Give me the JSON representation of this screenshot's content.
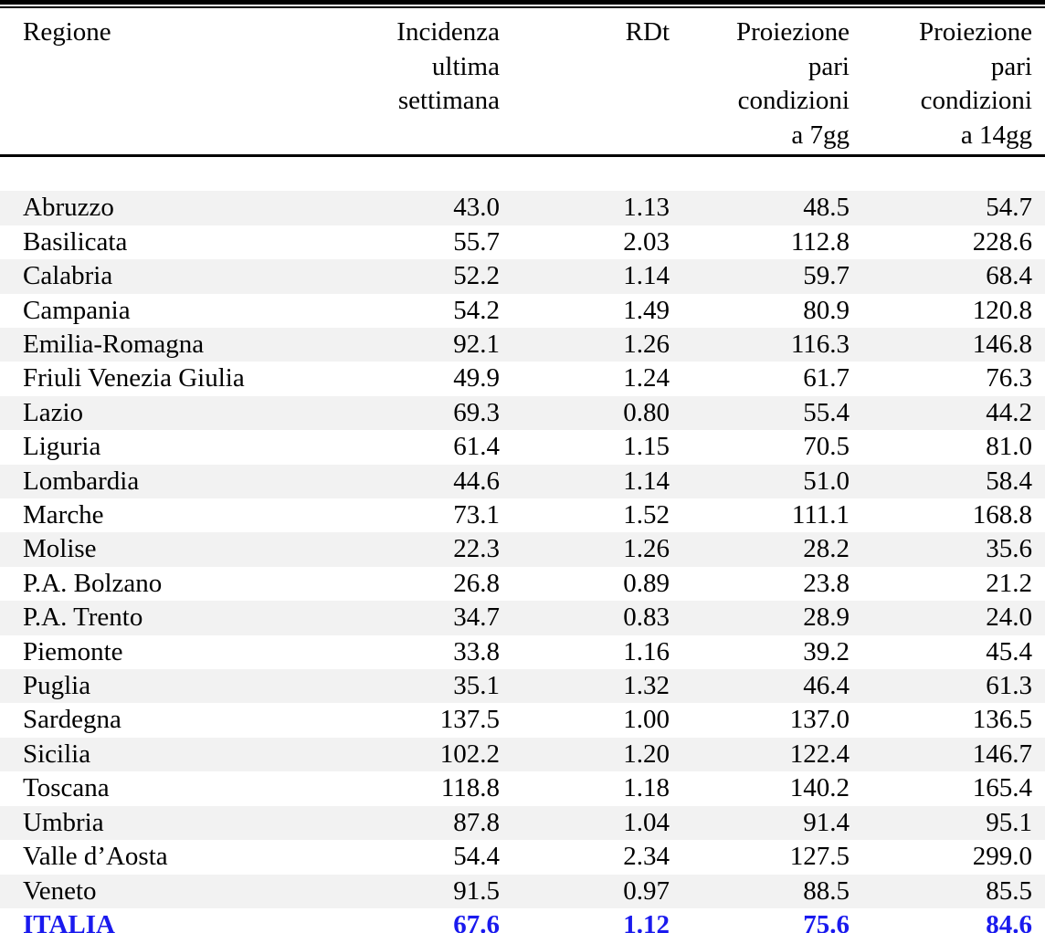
{
  "colors": {
    "stripe": "#f2f2f2",
    "total_accent": "#1a1aee",
    "rule": "#000000",
    "text": "#000000"
  },
  "table": {
    "headers": [
      "Regione",
      "Incidenza\nultima\nsettimana",
      "RDt",
      "Proiezione\npari\ncondizioni\na 7gg",
      "Proiezione\npari\ncondizioni\na 14gg"
    ],
    "rows": [
      {
        "region": "Abruzzo",
        "incidenza": "43.0",
        "rdt": "1.13",
        "p7": "48.5",
        "p14": "54.7"
      },
      {
        "region": "Basilicata",
        "incidenza": "55.7",
        "rdt": "2.03",
        "p7": "112.8",
        "p14": "228.6"
      },
      {
        "region": "Calabria",
        "incidenza": "52.2",
        "rdt": "1.14",
        "p7": "59.7",
        "p14": "68.4"
      },
      {
        "region": "Campania",
        "incidenza": "54.2",
        "rdt": "1.49",
        "p7": "80.9",
        "p14": "120.8"
      },
      {
        "region": "Emilia-Romagna",
        "incidenza": "92.1",
        "rdt": "1.26",
        "p7": "116.3",
        "p14": "146.8"
      },
      {
        "region": "Friuli Venezia Giulia",
        "incidenza": "49.9",
        "rdt": "1.24",
        "p7": "61.7",
        "p14": "76.3"
      },
      {
        "region": "Lazio",
        "incidenza": "69.3",
        "rdt": "0.80",
        "p7": "55.4",
        "p14": "44.2"
      },
      {
        "region": "Liguria",
        "incidenza": "61.4",
        "rdt": "1.15",
        "p7": "70.5",
        "p14": "81.0"
      },
      {
        "region": "Lombardia",
        "incidenza": "44.6",
        "rdt": "1.14",
        "p7": "51.0",
        "p14": "58.4"
      },
      {
        "region": "Marche",
        "incidenza": "73.1",
        "rdt": "1.52",
        "p7": "111.1",
        "p14": "168.8"
      },
      {
        "region": "Molise",
        "incidenza": "22.3",
        "rdt": "1.26",
        "p7": "28.2",
        "p14": "35.6"
      },
      {
        "region": "P.A. Bolzano",
        "incidenza": "26.8",
        "rdt": "0.89",
        "p7": "23.8",
        "p14": "21.2"
      },
      {
        "region": "P.A. Trento",
        "incidenza": "34.7",
        "rdt": "0.83",
        "p7": "28.9",
        "p14": "24.0"
      },
      {
        "region": "Piemonte",
        "incidenza": "33.8",
        "rdt": "1.16",
        "p7": "39.2",
        "p14": "45.4"
      },
      {
        "region": "Puglia",
        "incidenza": "35.1",
        "rdt": "1.32",
        "p7": "46.4",
        "p14": "61.3"
      },
      {
        "region": "Sardegna",
        "incidenza": "137.5",
        "rdt": "1.00",
        "p7": "137.0",
        "p14": "136.5"
      },
      {
        "region": "Sicilia",
        "incidenza": "102.2",
        "rdt": "1.20",
        "p7": "122.4",
        "p14": "146.7"
      },
      {
        "region": "Toscana",
        "incidenza": "118.8",
        "rdt": "1.18",
        "p7": "140.2",
        "p14": "165.4"
      },
      {
        "region": "Umbria",
        "incidenza": "87.8",
        "rdt": "1.04",
        "p7": "91.4",
        "p14": "95.1"
      },
      {
        "region": "Valle d’Aosta",
        "incidenza": "54.4",
        "rdt": "2.34",
        "p7": "127.5",
        "p14": "299.0"
      },
      {
        "region": "Veneto",
        "incidenza": "91.5",
        "rdt": "0.97",
        "p7": "88.5",
        "p14": "85.5"
      }
    ],
    "total_row": {
      "region": "ITALIA",
      "incidenza": "67.6",
      "rdt": "1.12",
      "p7": "75.6",
      "p14": "84.6"
    }
  }
}
